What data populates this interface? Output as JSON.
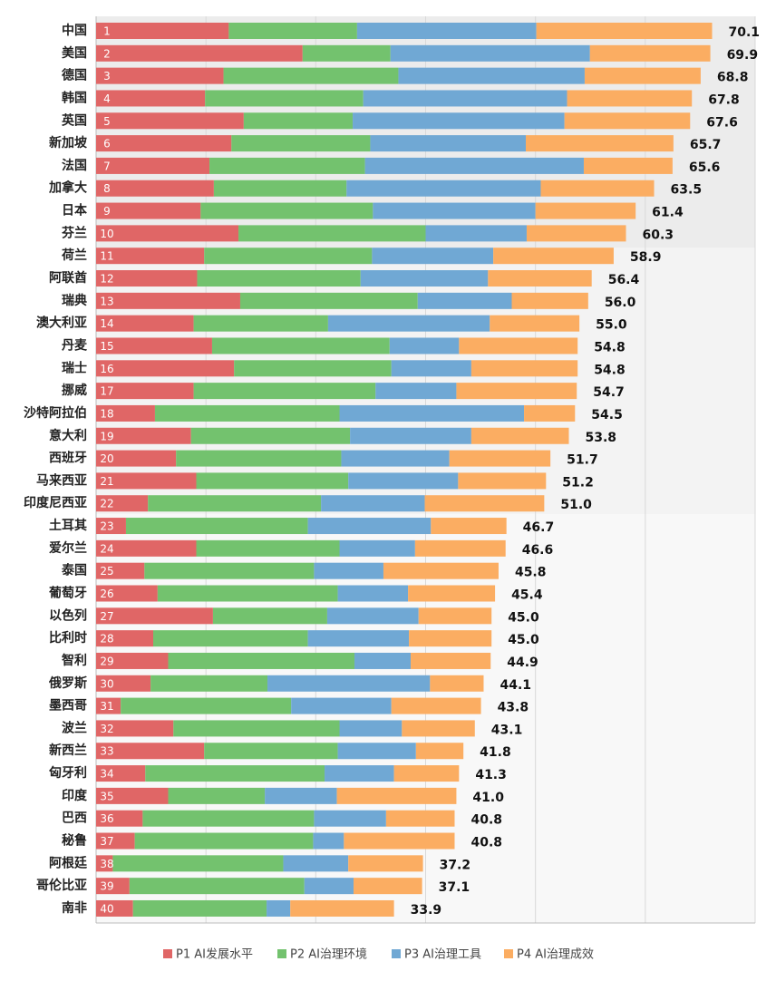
{
  "chart_data": {
    "type": "stacked-barh",
    "categories": [
      "中国",
      "美国",
      "德国",
      "韩国",
      "英国",
      "新加坡",
      "法国",
      "加拿大",
      "日本",
      "芬兰",
      "荷兰",
      "阿联酋",
      "瑞典",
      "澳大利亚",
      "丹麦",
      "瑞士",
      "挪威",
      "沙特阿拉伯",
      "意大利",
      "西班牙",
      "马来西亚",
      "印度尼西亚",
      "土耳其",
      "爱尔兰",
      "泰国",
      "葡萄牙",
      "以色列",
      "比利时",
      "智利",
      "俄罗斯",
      "墨西哥",
      "波兰",
      "新西兰",
      "匈牙利",
      "印度",
      "巴西",
      "秘鲁",
      "阿根廷",
      "哥伦比亚",
      "南非"
    ],
    "ranks": [
      1,
      2,
      3,
      4,
      5,
      6,
      7,
      8,
      9,
      10,
      11,
      12,
      13,
      14,
      15,
      16,
      17,
      18,
      19,
      20,
      21,
      22,
      23,
      24,
      25,
      26,
      27,
      28,
      29,
      30,
      31,
      32,
      33,
      34,
      35,
      36,
      37,
      38,
      39,
      40
    ],
    "series": [
      {
        "name": "P1 AI发展水平",
        "color": "#e06666",
        "values": [
          15.1,
          23.5,
          14.5,
          12.4,
          16.8,
          15.4,
          12.9,
          13.4,
          11.9,
          16.2,
          12.3,
          11.5,
          16.4,
          11.1,
          13.2,
          15.7,
          11.1,
          6.7,
          10.8,
          9.1,
          11.4,
          5.9,
          3.4,
          11.4,
          5.5,
          7.0,
          13.3,
          6.5,
          8.2,
          6.2,
          2.8,
          8.8,
          12.3,
          5.6,
          8.2,
          5.3,
          4.4,
          1.9,
          3.8,
          4.2
        ]
      },
      {
        "name": "P2 AI治理环境",
        "color": "#73c26e",
        "values": [
          14.6,
          10.0,
          19.9,
          18.0,
          12.4,
          15.8,
          17.7,
          15.1,
          19.6,
          21.3,
          19.1,
          18.6,
          20.2,
          15.3,
          20.2,
          17.9,
          20.7,
          21.0,
          18.1,
          18.8,
          17.3,
          19.7,
          20.7,
          16.3,
          19.3,
          20.5,
          13.0,
          17.6,
          21.2,
          13.3,
          19.4,
          18.9,
          15.2,
          20.4,
          11.0,
          19.5,
          20.3,
          19.4,
          19.9,
          15.2
        ]
      },
      {
        "name": "P3 AI治理工具",
        "color": "#70a8d4",
        "values": [
          20.4,
          22.7,
          21.2,
          23.2,
          24.1,
          17.7,
          24.9,
          22.1,
          18.5,
          11.5,
          13.8,
          14.5,
          10.7,
          18.4,
          7.9,
          9.1,
          9.2,
          21.0,
          13.8,
          12.3,
          12.5,
          11.8,
          14.0,
          8.6,
          7.9,
          8.0,
          10.4,
          11.5,
          6.4,
          18.5,
          11.4,
          7.1,
          8.9,
          7.9,
          8.2,
          8.2,
          3.5,
          7.4,
          5.6,
          2.7
        ]
      },
      {
        "name": "P4 AI治理成效",
        "color": "#fbad62",
        "values": [
          20.0,
          13.7,
          13.2,
          14.2,
          14.3,
          16.8,
          10.1,
          12.9,
          11.4,
          11.3,
          13.7,
          11.8,
          8.7,
          10.2,
          13.5,
          12.1,
          13.7,
          5.8,
          11.1,
          11.5,
          10.0,
          13.6,
          8.6,
          10.3,
          13.1,
          9.9,
          8.3,
          9.4,
          9.1,
          6.1,
          10.2,
          8.3,
          5.4,
          7.4,
          13.6,
          7.8,
          12.6,
          8.5,
          7.8,
          11.8
        ]
      }
    ],
    "total_labels": [
      "70.1",
      "69.9",
      "68.8",
      "67.8",
      "67.6",
      "65.7",
      "65.6",
      "63.5",
      "61.4",
      "60.3",
      "58.9",
      "56.4",
      "56.0",
      "55.0",
      "54.8",
      "54.8",
      "54.7",
      "54.5",
      "53.8",
      "51.7",
      "51.2",
      "51.0",
      "46.7",
      "46.6",
      "45.8",
      "45.4",
      "45.0",
      "45.0",
      "44.9",
      "44.1",
      "43.8",
      "43.1",
      "41.8",
      "41.3",
      "41.0",
      "40.8",
      "40.8",
      "37.2",
      "37.1",
      "33.9"
    ],
    "xlim": [
      0,
      75
    ],
    "xticks": [
      0,
      12.5,
      25,
      37.5,
      50,
      62.5,
      75
    ],
    "grid": true
  }
}
